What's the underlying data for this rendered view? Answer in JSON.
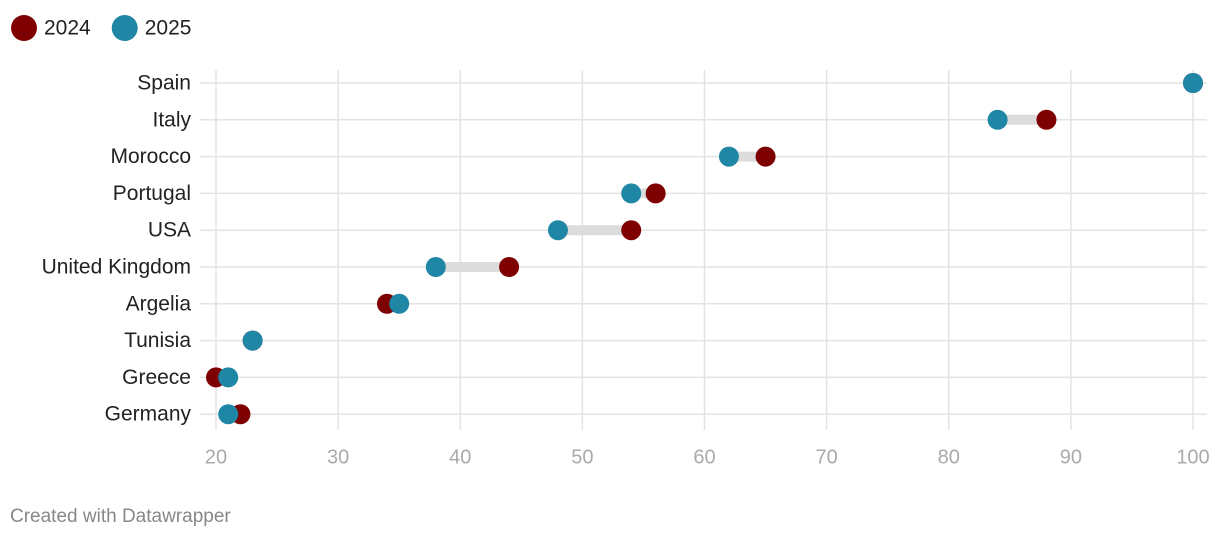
{
  "chart_data": {
    "type": "dot",
    "categories": [
      "Spain",
      "Italy",
      "Morocco",
      "Portugal",
      "USA",
      "United Kingdom",
      "Argelia",
      "Tunisia",
      "Greece",
      "Germany"
    ],
    "series": [
      {
        "name": "2024",
        "color": "#7e0000",
        "values": [
          100,
          88,
          65,
          56,
          54,
          44,
          34,
          23,
          20,
          22
        ]
      },
      {
        "name": "2025",
        "color": "#1f87a5",
        "values": [
          100,
          84,
          62,
          54,
          48,
          38,
          35,
          23,
          21,
          21
        ]
      }
    ],
    "xlim": [
      20,
      100
    ],
    "xticks": [
      20,
      30,
      40,
      50,
      60,
      70,
      80,
      90,
      100
    ],
    "grid": true,
    "legend": "top-left",
    "credit": "Created with Datawrapper"
  }
}
